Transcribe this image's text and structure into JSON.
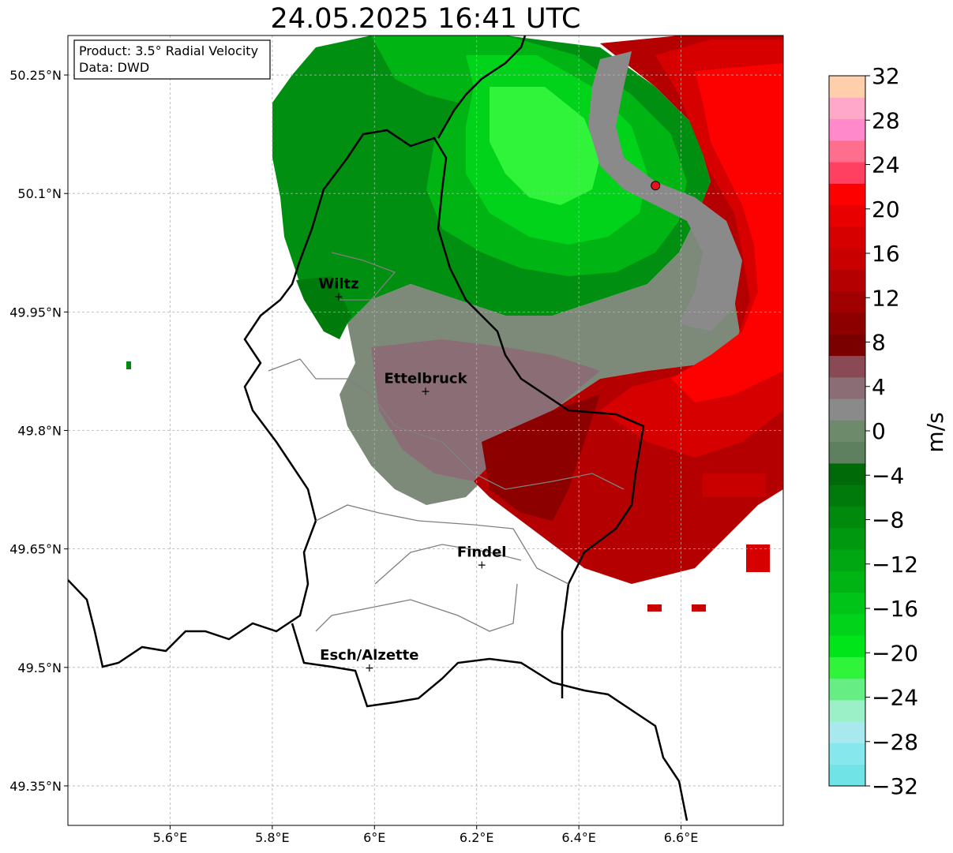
{
  "title": "24.05.2025 16:41 UTC",
  "product_box": {
    "line1": "Product: 3.5° Radial Velocity",
    "line2": "Data: DWD"
  },
  "map": {
    "lon_range": [
      5.4,
      6.8
    ],
    "lat_range": [
      49.3,
      50.3
    ],
    "lat_ticks": [
      {
        "value": 50.25,
        "label": "50.25°N"
      },
      {
        "value": 50.1,
        "label": "50.1°N"
      },
      {
        "value": 49.95,
        "label": "49.95°N"
      },
      {
        "value": 49.8,
        "label": "49.8°N"
      },
      {
        "value": 49.65,
        "label": "49.65°N"
      },
      {
        "value": 49.5,
        "label": "49.5°N"
      },
      {
        "value": 49.35,
        "label": "49.35°N"
      }
    ],
    "lon_ticks": [
      {
        "value": 5.6,
        "label": "5.6°E"
      },
      {
        "value": 5.8,
        "label": "5.8°E"
      },
      {
        "value": 6.0,
        "label": "6°E"
      },
      {
        "value": 6.2,
        "label": "6.2°E"
      },
      {
        "value": 6.4,
        "label": "6.4°E"
      },
      {
        "value": 6.6,
        "label": "6.6°E"
      }
    ],
    "grid": true,
    "cities": [
      {
        "name": "Wiltz",
        "lon": 5.93,
        "lat": 49.97
      },
      {
        "name": "Ettelbruck",
        "lon": 6.1,
        "lat": 49.85
      },
      {
        "name": "Findel",
        "lon": 6.21,
        "lat": 49.63
      },
      {
        "name": "Esch/Alzette",
        "lon": 5.99,
        "lat": 49.5
      }
    ],
    "radar_site": {
      "lon": 6.55,
      "lat": 50.11,
      "color": "#e8101a"
    }
  },
  "colorbar": {
    "label": "m/s",
    "min": -32,
    "max": 32,
    "ticks": [
      {
        "value": 32,
        "label": "32"
      },
      {
        "value": 28,
        "label": "28"
      },
      {
        "value": 24,
        "label": "24"
      },
      {
        "value": 20,
        "label": "20"
      },
      {
        "value": 16,
        "label": "16"
      },
      {
        "value": 12,
        "label": "12"
      },
      {
        "value": 8,
        "label": "8"
      },
      {
        "value": 4,
        "label": "4"
      },
      {
        "value": 0,
        "label": "0"
      },
      {
        "value": -4,
        "label": "−4"
      },
      {
        "value": -8,
        "label": "−8"
      },
      {
        "value": -12,
        "label": "−12"
      },
      {
        "value": -16,
        "label": "−16"
      },
      {
        "value": -20,
        "label": "−20"
      },
      {
        "value": -24,
        "label": "−24"
      },
      {
        "value": -28,
        "label": "−28"
      },
      {
        "value": -32,
        "label": "−32"
      }
    ],
    "colors_bottom_to_top": [
      "#6fe3e6",
      "#86e8ec",
      "#a8e9ee",
      "#9bf0c8",
      "#66ee84",
      "#2ff43a",
      "#00e51a",
      "#00d31a",
      "#00c417",
      "#00b414",
      "#00a712",
      "#00980f",
      "#008a0d",
      "#007a0b",
      "#006a09",
      "#5f805e",
      "#6d8a6b",
      "#8a8a8a",
      "#8b6d75",
      "#8a4a55",
      "#7a0000",
      "#8c0000",
      "#a00000",
      "#b40000",
      "#c80000",
      "#d70000",
      "#e80000",
      "#fd0000",
      "#ff4060",
      "#ff6f8d",
      "#ff89cb",
      "#ffa8c7",
      "#ffcfac"
    ]
  }
}
